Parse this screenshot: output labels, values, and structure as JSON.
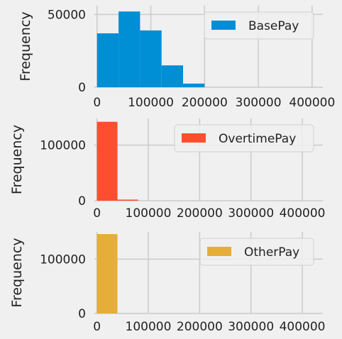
{
  "chart_data": [
    {
      "type": "bar",
      "subtype": "histogram",
      "series_name": "BasePay",
      "color": "#008fd5",
      "xlim": [
        -5000,
        420000
      ],
      "ylim": [
        0,
        56000
      ],
      "xticks": [
        0,
        100000,
        200000,
        300000,
        400000
      ],
      "yticks": [
        0,
        50000
      ],
      "ylabel": "Frequency",
      "bins": [
        {
          "start": 0,
          "end": 40000,
          "count": 37000
        },
        {
          "start": 40000,
          "end": 80000,
          "count": 52000
        },
        {
          "start": 80000,
          "end": 120000,
          "count": 39000
        },
        {
          "start": 120000,
          "end": 160000,
          "count": 15000
        },
        {
          "start": 160000,
          "end": 200000,
          "count": 2500
        }
      ],
      "legend": "top-right"
    },
    {
      "type": "bar",
      "subtype": "histogram",
      "series_name": "OvertimePay",
      "color": "#fc4f30",
      "xlim": [
        -5000,
        440000
      ],
      "ylim": [
        0,
        148000
      ],
      "xticks": [
        0,
        100000,
        200000,
        300000,
        400000
      ],
      "yticks": [
        0,
        100000
      ],
      "ylabel": "Frequency",
      "bins": [
        {
          "start": 0,
          "end": 40000,
          "count": 142000
        },
        {
          "start": 40000,
          "end": 80000,
          "count": 2000
        }
      ],
      "legend": "top-right"
    },
    {
      "type": "bar",
      "subtype": "histogram",
      "series_name": "OtherPay",
      "color": "#e5ae38",
      "xlim": [
        -5000,
        440000
      ],
      "ylim": [
        0,
        150000
      ],
      "xticks": [
        0,
        100000,
        200000,
        300000,
        400000
      ],
      "yticks": [
        0,
        100000
      ],
      "ylabel": "Frequency",
      "bins": [
        {
          "start": 0,
          "end": 40000,
          "count": 146000
        }
      ],
      "legend": "top-right"
    }
  ]
}
